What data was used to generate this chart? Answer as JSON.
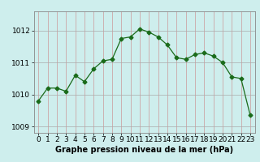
{
  "x": [
    0,
    1,
    2,
    3,
    4,
    5,
    6,
    7,
    8,
    9,
    10,
    11,
    12,
    13,
    14,
    15,
    16,
    17,
    18,
    19,
    20,
    21,
    22,
    23
  ],
  "y": [
    1009.8,
    1010.2,
    1010.2,
    1010.1,
    1010.6,
    1010.4,
    1010.8,
    1011.05,
    1011.1,
    1011.75,
    1011.8,
    1012.05,
    1011.95,
    1011.8,
    1011.55,
    1011.15,
    1011.1,
    1011.25,
    1011.3,
    1011.2,
    1011.0,
    1010.55,
    1010.5,
    1009.35
  ],
  "line_color": "#1a6b1a",
  "marker": "D",
  "marker_size": 2.5,
  "bg_color": "#ceeeed",
  "grid_color_v": "#cc9999",
  "grid_color_h": "#aaaaaa",
  "xlabel": "Graphe pression niveau de la mer (hPa)",
  "xlabel_fontsize": 7,
  "tick_fontsize": 6.5,
  "ylim": [
    1008.8,
    1012.6
  ],
  "yticks": [
    1009,
    1010,
    1011,
    1012
  ],
  "xlim": [
    -0.5,
    23.5
  ],
  "xticks": [
    0,
    1,
    2,
    3,
    4,
    5,
    6,
    7,
    8,
    9,
    10,
    11,
    12,
    13,
    14,
    15,
    16,
    17,
    18,
    19,
    20,
    21,
    22,
    23
  ]
}
